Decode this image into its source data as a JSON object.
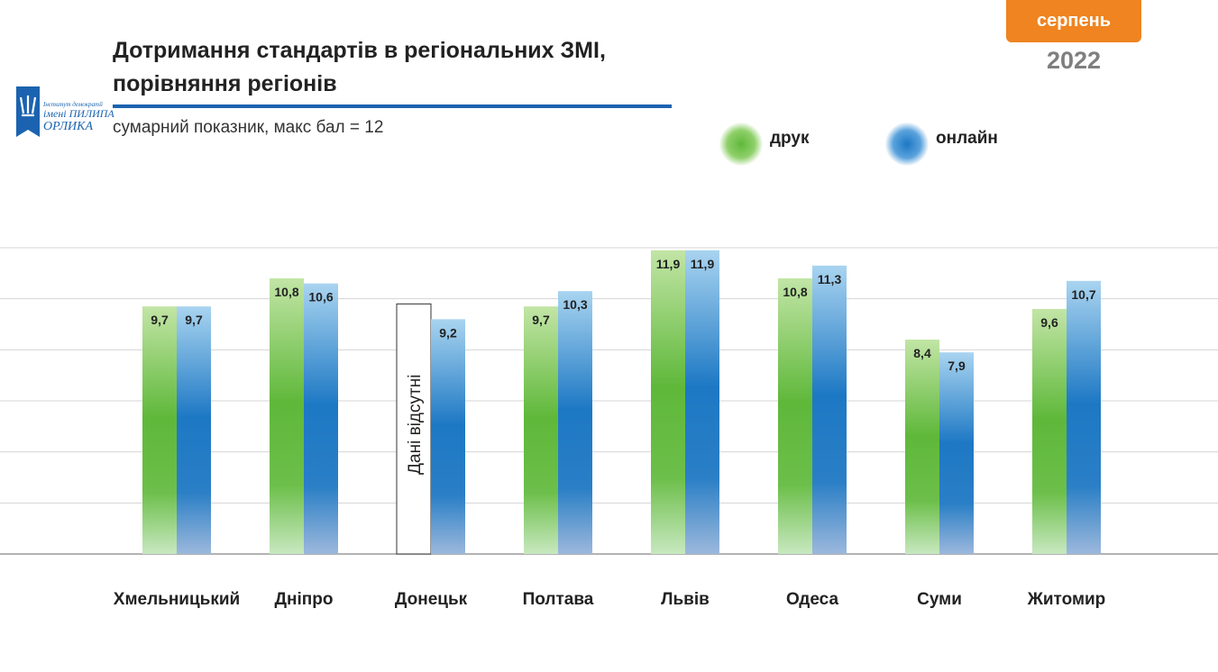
{
  "header": {
    "title_line1": "Дотримання стандартів в регіональних ЗМІ,",
    "title_line2": "порівняння регіонів",
    "subtitle": "сумарний показник, макс бал = 12",
    "month": "серпень",
    "year": "2022"
  },
  "logo": {
    "line1": "Інститут демократії",
    "line2": "імені ПИЛИПА",
    "line3": "ОРЛИКА"
  },
  "colors": {
    "print": "#5fb83a",
    "online": "#1d78c4",
    "accent": "#ef8420",
    "rule": "#1b63b0"
  },
  "chart_data": {
    "type": "bar",
    "categories": [
      "Хмельницький",
      "Дніпро",
      "Донецьк",
      "Полтава",
      "Львів",
      "Одеса",
      "Суми",
      "Житомир"
    ],
    "series": [
      {
        "name": "друк",
        "values": [
          9.7,
          10.8,
          null,
          9.7,
          11.9,
          10.8,
          8.4,
          9.6
        ]
      },
      {
        "name": "онлайн",
        "values": [
          9.7,
          10.6,
          9.2,
          10.3,
          11.9,
          11.3,
          7.9,
          10.7
        ]
      }
    ],
    "data_labels": {
      "print": [
        "9,7",
        "10,8",
        "",
        "9,7",
        "11,9",
        "10,8",
        "8,4",
        "9,6"
      ],
      "online": [
        "9,7",
        "10,6",
        "9,2",
        "10,3",
        "11,9",
        "11,3",
        "7,9",
        "10,7"
      ]
    },
    "missing_note": "Дані відсутні",
    "ylim": [
      0,
      12
    ],
    "grid_step": 2,
    "grid": true,
    "legend": "top-right"
  }
}
